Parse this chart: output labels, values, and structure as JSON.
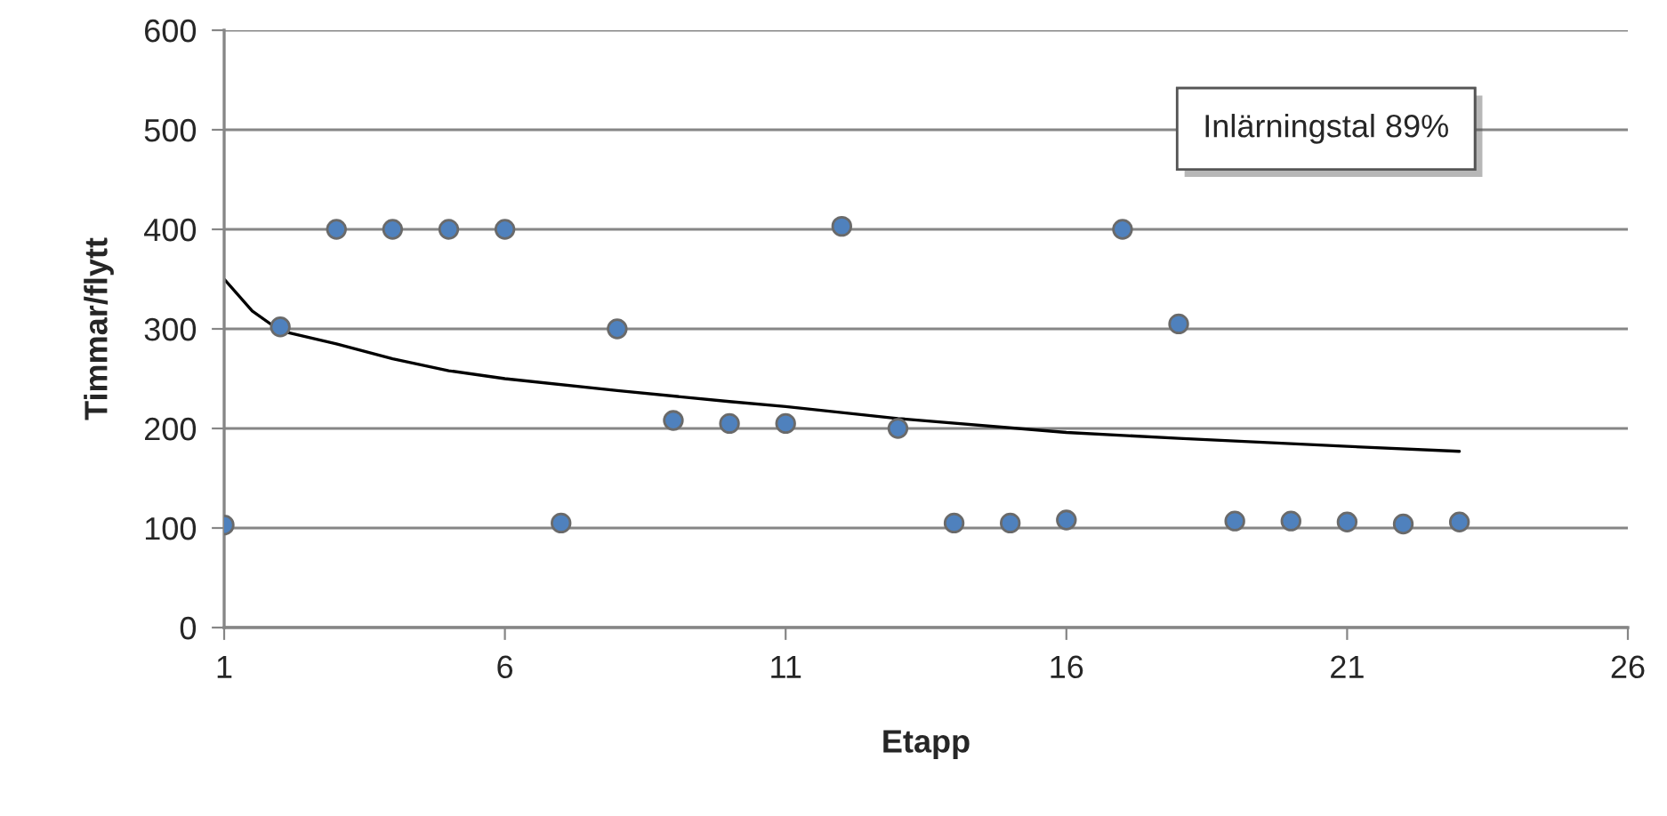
{
  "chart_data": {
    "type": "scatter",
    "xlabel": "Etapp",
    "ylabel": "Timmar/flytt",
    "xlim": [
      1,
      26
    ],
    "xticks": [
      1,
      6,
      11,
      16,
      21,
      26
    ],
    "ylim": [
      0,
      600
    ],
    "yticks": [
      0,
      100,
      200,
      300,
      400,
      500,
      600
    ],
    "grid": "y",
    "legend": false,
    "marker": "circle",
    "series": [
      {
        "color": "#4f81bd",
        "x": [
          1,
          2,
          3,
          4,
          5,
          6,
          7,
          8,
          9,
          10,
          11,
          12,
          13,
          14,
          15,
          16,
          17,
          18,
          19,
          20,
          21,
          22,
          23
        ],
        "values": [
          103,
          302,
          400,
          400,
          400,
          400,
          105,
          300,
          208,
          205,
          205,
          403,
          200,
          105,
          105,
          108,
          400,
          305,
          107,
          107,
          106,
          104,
          106
        ]
      },
      {
        "type": "line",
        "color": "#000000",
        "line_style": "solid",
        "marker": "none",
        "x": [
          1,
          1.5,
          2,
          3,
          4,
          5,
          6,
          8,
          10,
          11,
          13,
          16,
          18,
          21,
          23
        ],
        "values": [
          350,
          318,
          298,
          285,
          270,
          258,
          250,
          238,
          227,
          222,
          210,
          196,
          190,
          182,
          177
        ]
      }
    ],
    "annotations": [
      "Inlärningstal 89%"
    ]
  }
}
